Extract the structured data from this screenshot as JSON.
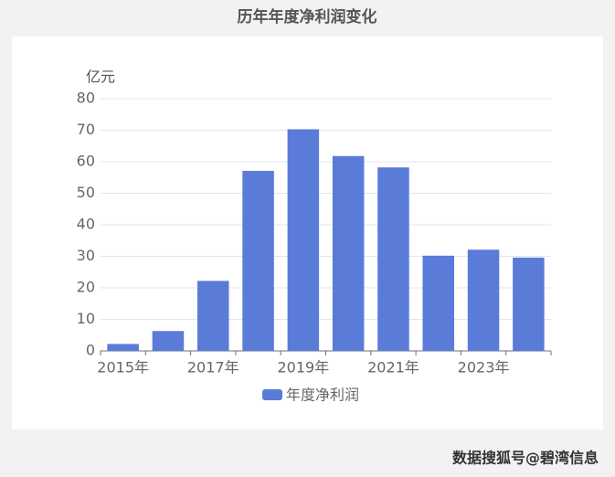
{
  "chart_data": {
    "type": "bar",
    "title": "历年年度净利润变化",
    "y_label": "亿元",
    "categories": [
      "2015年",
      null,
      "2017年",
      null,
      "2019年",
      null,
      "2021年",
      null,
      "2023年",
      null
    ],
    "series": [
      {
        "name": "年度净利润",
        "color": "#5b7bd8",
        "values": [
          2.2,
          6.3,
          22.2,
          57.1,
          70.3,
          61.8,
          58.2,
          30.2,
          32.1,
          29.6
        ]
      }
    ],
    "ylim": [
      0,
      80
    ],
    "yticks": [
      0,
      10,
      20,
      30,
      40,
      50,
      60,
      70,
      80
    ],
    "grid": true,
    "source": "数据搜狐号@碧湾信息"
  }
}
